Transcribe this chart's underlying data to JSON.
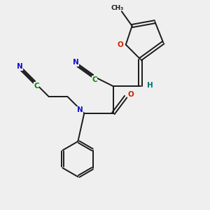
{
  "background_color": "#efefef",
  "bond_color": "#1a1a1a",
  "colors": {
    "N": "#1010cc",
    "O": "#cc2200",
    "C": "#008800",
    "H": "#007070",
    "black": "#1a1a1a"
  },
  "figsize": [
    3.0,
    3.0
  ],
  "dpi": 100
}
